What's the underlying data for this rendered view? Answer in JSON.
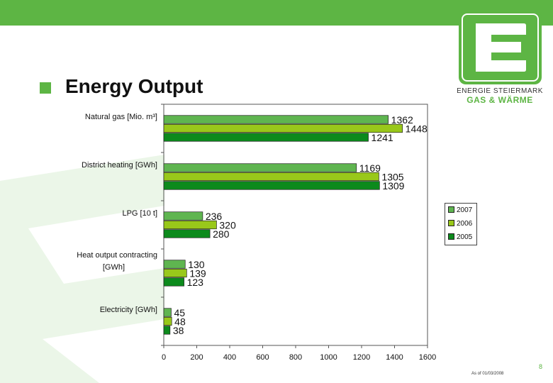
{
  "slide": {
    "title": "Energy Output",
    "page_number": "8",
    "as_of": "As of 01/03/2008"
  },
  "logo": {
    "line1": "ENERGIE STEIERMARK",
    "line2": "GAS & WÄRME"
  },
  "colors": {
    "brand_green": "#5db544",
    "s2007": "#5fb550",
    "s2006": "#99c81a",
    "s2005": "#0c8a1c"
  },
  "chart_data": {
    "type": "bar",
    "orientation": "horizontal",
    "categories": [
      "Natural gas [Mio. m³]",
      "District heating [GWh]",
      "LPG [10 t]",
      "Heat output contracting [GWh]",
      "Electricity [GWh]"
    ],
    "category_lines": [
      [
        "Natural gas [Mio. m³]"
      ],
      [
        "District heating [GWh]"
      ],
      [
        "LPG [10 t]"
      ],
      [
        "Heat output contracting",
        "[GWh]"
      ],
      [
        "Electricity [GWh]"
      ]
    ],
    "series": [
      {
        "name": "2007",
        "color": "#5fb550",
        "values": [
          1362,
          1169,
          236,
          130,
          45
        ]
      },
      {
        "name": "2006",
        "color": "#99c81a",
        "values": [
          1448,
          1305,
          320,
          139,
          48
        ]
      },
      {
        "name": "2005",
        "color": "#0c8a1c",
        "values": [
          1241,
          1309,
          280,
          123,
          38
        ]
      }
    ],
    "xlim": [
      0,
      1600
    ],
    "xticks": [
      0,
      200,
      400,
      600,
      800,
      1000,
      1200,
      1400,
      1600
    ],
    "xlabel": "",
    "ylabel": "",
    "grid": false,
    "legend": "right"
  }
}
